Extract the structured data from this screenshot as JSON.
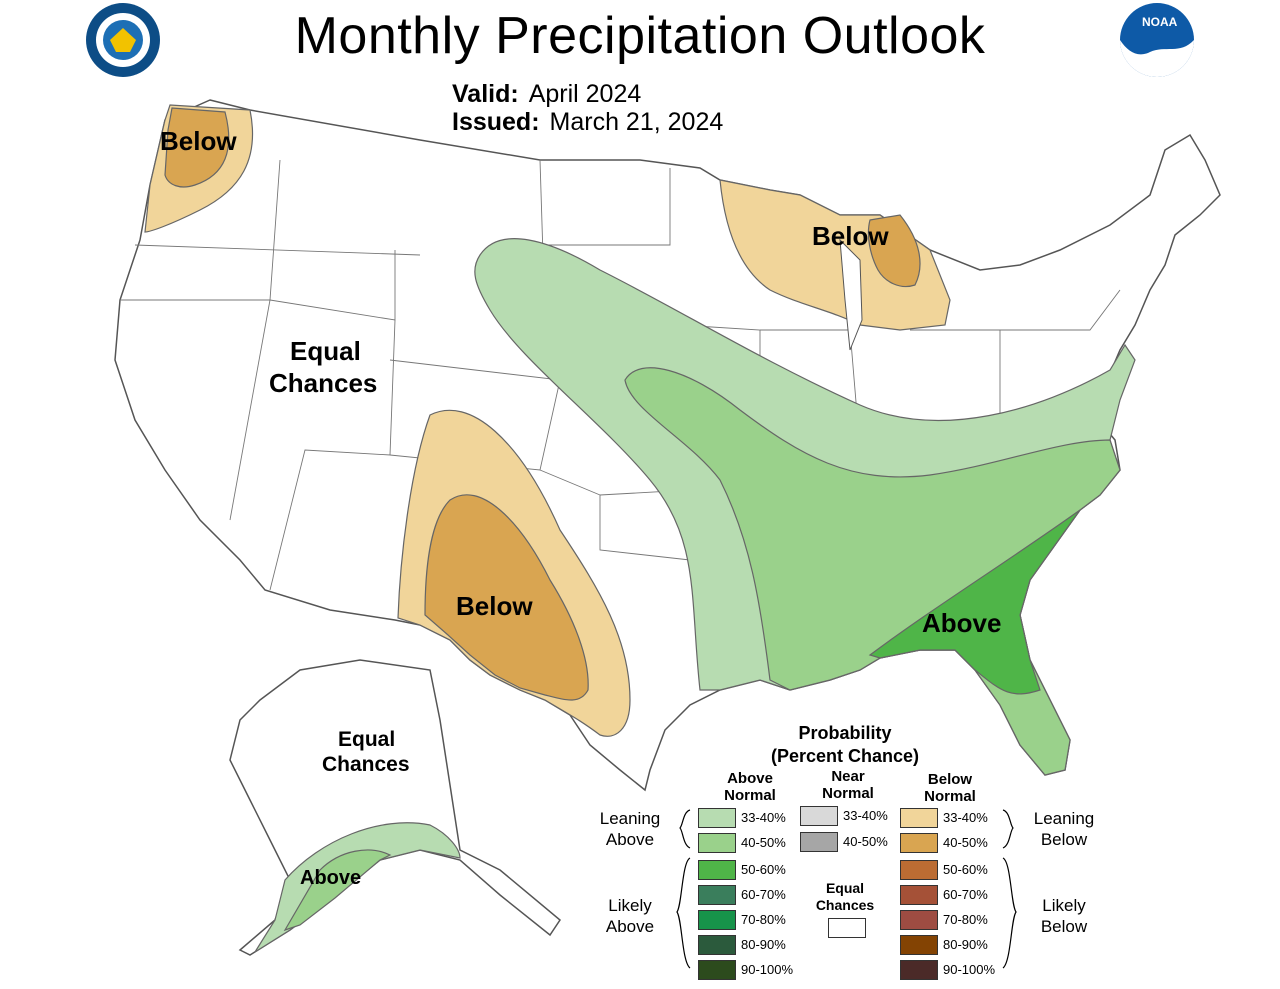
{
  "title": "Monthly Precipitation Outlook",
  "valid": {
    "label": "Valid:",
    "value": "April 2024"
  },
  "issued": {
    "label": "Issued:",
    "value": "March 21, 2024"
  },
  "logos": {
    "left": "doc-seal-icon",
    "right": "noaa-logo-icon"
  },
  "regions": {
    "pnw_below": "Below",
    "great_lakes_below": "Below",
    "southwest_below": "Below",
    "southeast_above": "Above",
    "equal_chances_line1": "Equal",
    "equal_chances_line2": "Chances",
    "alaska_equal_line1": "Equal",
    "alaska_equal_line2": "Chances",
    "alaska_above": "Above"
  },
  "colors": {
    "above_33_40": "#b7dcb1",
    "above_40_50": "#9ad18b",
    "above_50_60": "#4fb548",
    "above_60_70": "#3a7e5c",
    "above_70_80": "#17934a",
    "above_80_90": "#2b5a3c",
    "above_90_100": "#2c4b1d",
    "near_33_40": "#d9d9d9",
    "near_40_50": "#a6a6a6",
    "below_33_40": "#f1d59a",
    "below_40_50": "#d9a551",
    "below_50_60": "#bb6c33",
    "below_60_70": "#a55137",
    "below_70_80": "#9e4c42",
    "below_80_90": "#834303",
    "below_90_100": "#4b2a28",
    "equal": "#ffffff"
  },
  "legend": {
    "title_line1": "Probability",
    "title_line2": "(Percent Chance)",
    "above_head_1": "Above",
    "above_head_2": "Normal",
    "near_head_1": "Near",
    "near_head_2": "Normal",
    "below_head_1": "Below",
    "below_head_2": "Normal",
    "leaning_above_1": "Leaning",
    "leaning_above_2": "Above",
    "likely_above_1": "Likely",
    "likely_above_2": "Above",
    "leaning_below_1": "Leaning",
    "leaning_below_2": "Below",
    "likely_below_1": "Likely",
    "likely_below_2": "Below",
    "equal_1": "Equal",
    "equal_2": "Chances",
    "above_bins": [
      "33-40%",
      "40-50%",
      "50-60%",
      "60-70%",
      "70-80%",
      "80-90%",
      "90-100%"
    ],
    "near_bins": [
      "33-40%",
      "40-50%"
    ],
    "below_bins": [
      "33-40%",
      "40-50%",
      "50-60%",
      "60-70%",
      "70-80%",
      "80-90%",
      "90-100%"
    ]
  }
}
